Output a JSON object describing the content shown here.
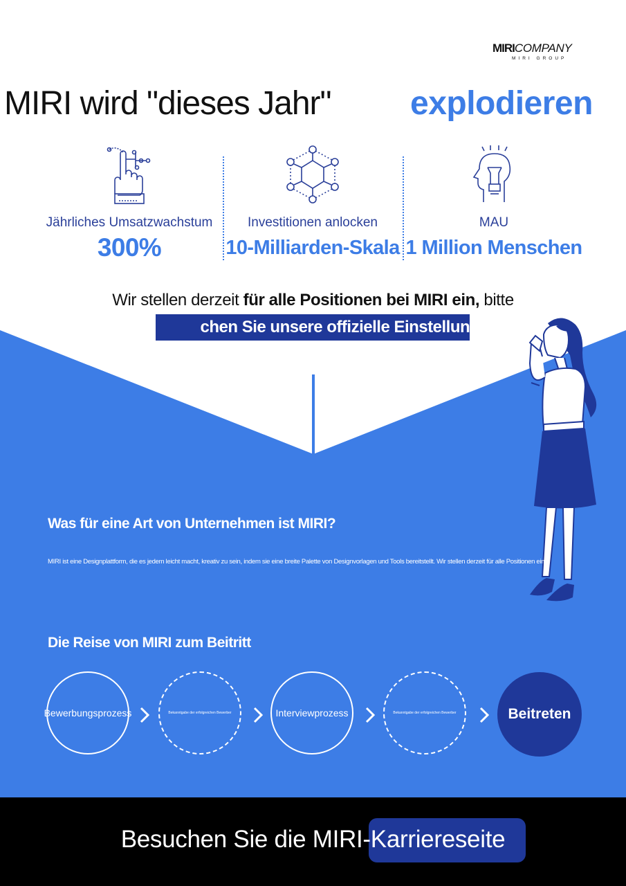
{
  "logo": {
    "main_prefix": "MIRI",
    "main_suffix": "COMPANY",
    "sub": "MIRI GROUP"
  },
  "headline": {
    "part1": "MIRI wird \"dieses Jahr\"",
    "part2": "explodieren"
  },
  "stats": [
    {
      "label": "Jährliches Umsatzwachstum",
      "value": "300%",
      "icon": "hand-pointer-network-icon"
    },
    {
      "label": "Investitionen anlocken",
      "value": "10-Milliarden-Skala",
      "icon": "hexagon-network-icon"
    },
    {
      "label": "MAU",
      "value": "1 Million Menschen",
      "icon": "head-lightbulb-icon"
    }
  ],
  "hiring": {
    "line1_pre": "Wir stellen derzeit ",
    "line1_bold": "für alle Positionen bei MIRI ein,",
    "line1_post": " bitte",
    "line2_visible": "chen Sie unsere offizielle Einstellungss"
  },
  "about": {
    "heading": "Was für eine Art von Unternehmen ist MIRI?",
    "body": "MIRI ist eine Designplattform, die es jedem leicht macht, kreativ zu sein, indem sie eine breite Palette von Designvorlagen und Tools bereitstellt. Wir stellen derzeit für alle Positionen ein."
  },
  "journey": {
    "heading": "Die Reise von MIRI zum Beitritt",
    "steps": [
      {
        "label": "Bewerbungsprozess"
      },
      {
        "label": "Bekanntgabe der erfolgreichen Bewerber"
      },
      {
        "label": "Interviewprozess"
      },
      {
        "label": "Bekanntgabe der erfolgreichen Bewerber"
      },
      {
        "label": "Beitreten"
      }
    ]
  },
  "footer": {
    "cta": "Besuchen Sie die MIRI-Karriereseite"
  },
  "colors": {
    "accent_blue": "#3d7de6",
    "dark_navy": "#1f3899",
    "text_navy": "#2a3f99",
    "footer_bg": "#000000"
  }
}
